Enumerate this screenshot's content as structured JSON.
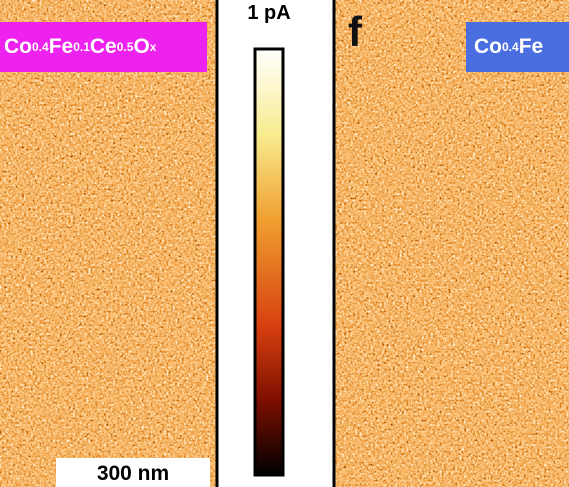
{
  "left_panel": {
    "label": {
      "parts": [
        {
          "text": "Co",
          "sub": "0.4"
        },
        {
          "text": "Fe",
          "sub": "0.1"
        },
        {
          "text": "Ce",
          "sub": "0.5"
        },
        {
          "text": "O",
          "sub": "x"
        }
      ]
    },
    "scale_bar": "300 nm"
  },
  "colorbar": {
    "label": "1 pA"
  },
  "right_panel": {
    "panel_letter": "f",
    "label": {
      "parts": [
        {
          "text": "Co",
          "sub": "0.4"
        },
        {
          "text": "Fe"
        }
      ]
    }
  }
}
